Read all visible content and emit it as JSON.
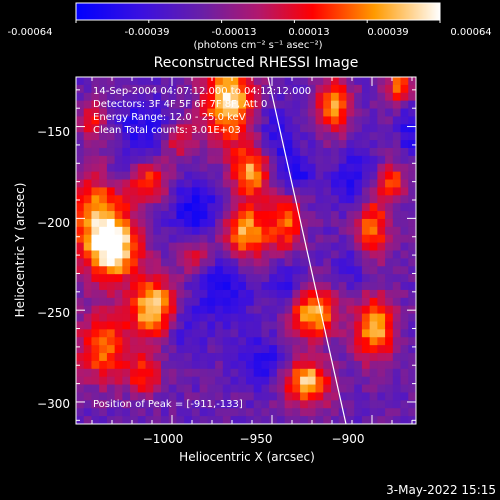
{
  "colorbar": {
    "ticks": [
      "-0.00064",
      "-0.00039",
      "-0.00013",
      "0.00013",
      "0.00039",
      "0.00064"
    ],
    "unit": "(photons cm⁻² s⁻¹ asec⁻²)"
  },
  "plot": {
    "title": "Reconstructed RHESSI Image",
    "info_lines": [
      "14-Sep-2004 04:07:12.000 to 04:12:12.000",
      "Detectors: 3F 4F 5F 6F 7F 8F, Att 0",
      "Energy Range: 12.0 - 25.0 keV",
      "Clean     Total counts: 3.01E+03"
    ],
    "peak_text": "Position of Peak = [-911,-133]",
    "xlabel": "Heliocentric X (arcsec)",
    "ylabel": "Heliocentric Y (arcsec)"
  },
  "chart_data": {
    "type": "heatmap",
    "title": "Reconstructed RHESSI Image",
    "xlabel": "Heliocentric X (arcsec)",
    "ylabel": "Heliocentric Y (arcsec)",
    "xlim": [
      -1048,
      -878
    ],
    "ylim": [
      -312,
      -123
    ],
    "xticks": [
      -1000,
      -950,
      -900
    ],
    "yticks": [
      -150,
      -200,
      -250,
      -300
    ],
    "value_range": [
      -0.00064,
      0.00064
    ],
    "peak_position": [
      -911,
      -133
    ],
    "colormap": [
      "#0000ff",
      "#6a1fa6",
      "#b0186e",
      "#ff0000",
      "#ffa000",
      "#ffffff"
    ],
    "limb_line_color": "#ffffff"
  },
  "footer": {
    "date": "3-May-2022 15:15"
  }
}
